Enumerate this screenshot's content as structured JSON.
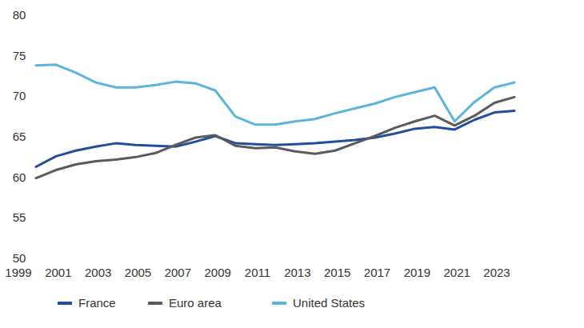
{
  "chart_data": {
    "type": "line",
    "x": [
      1999,
      2000,
      2001,
      2002,
      2003,
      2004,
      2005,
      2006,
      2007,
      2008,
      2009,
      2010,
      2011,
      2012,
      2013,
      2014,
      2015,
      2016,
      2017,
      2018,
      2019,
      2020,
      2021,
      2022,
      2023
    ],
    "xlim": [
      1999,
      2023
    ],
    "xticks": [
      1999,
      2001,
      2003,
      2005,
      2007,
      2009,
      2011,
      2013,
      2015,
      2017,
      2019,
      2021,
      2023
    ],
    "ylim": [
      50,
      80
    ],
    "yticks": [
      50,
      55,
      60,
      65,
      70,
      75,
      80
    ],
    "grid": false,
    "legend": "bottom",
    "series": [
      {
        "name": "France",
        "color": "#1f4f9e",
        "values": [
          61.2,
          62.5,
          63.2,
          63.7,
          64.1,
          63.9,
          63.8,
          63.7,
          64.3,
          65.0,
          64.1,
          64.0,
          63.9,
          64.0,
          64.1,
          64.3,
          64.5,
          64.8,
          65.3,
          65.9,
          66.1,
          65.8,
          67.0,
          67.9,
          68.1
        ]
      },
      {
        "name": "Euro area",
        "color": "#5a5a5a",
        "values": [
          59.8,
          60.8,
          61.5,
          61.9,
          62.1,
          62.4,
          62.9,
          63.9,
          64.8,
          65.1,
          63.8,
          63.5,
          63.6,
          63.1,
          62.8,
          63.2,
          64.1,
          65.0,
          66.0,
          66.8,
          67.5,
          66.3,
          67.5,
          69.1,
          69.8
        ]
      },
      {
        "name": "United States",
        "color": "#5bb4da",
        "values": [
          73.7,
          73.8,
          72.8,
          71.6,
          71.0,
          71.0,
          71.3,
          71.7,
          71.5,
          70.6,
          67.4,
          66.4,
          66.4,
          66.8,
          67.1,
          67.8,
          68.4,
          69.0,
          69.8,
          70.4,
          71.0,
          66.8,
          69.2,
          71.0,
          71.6
        ]
      }
    ]
  }
}
